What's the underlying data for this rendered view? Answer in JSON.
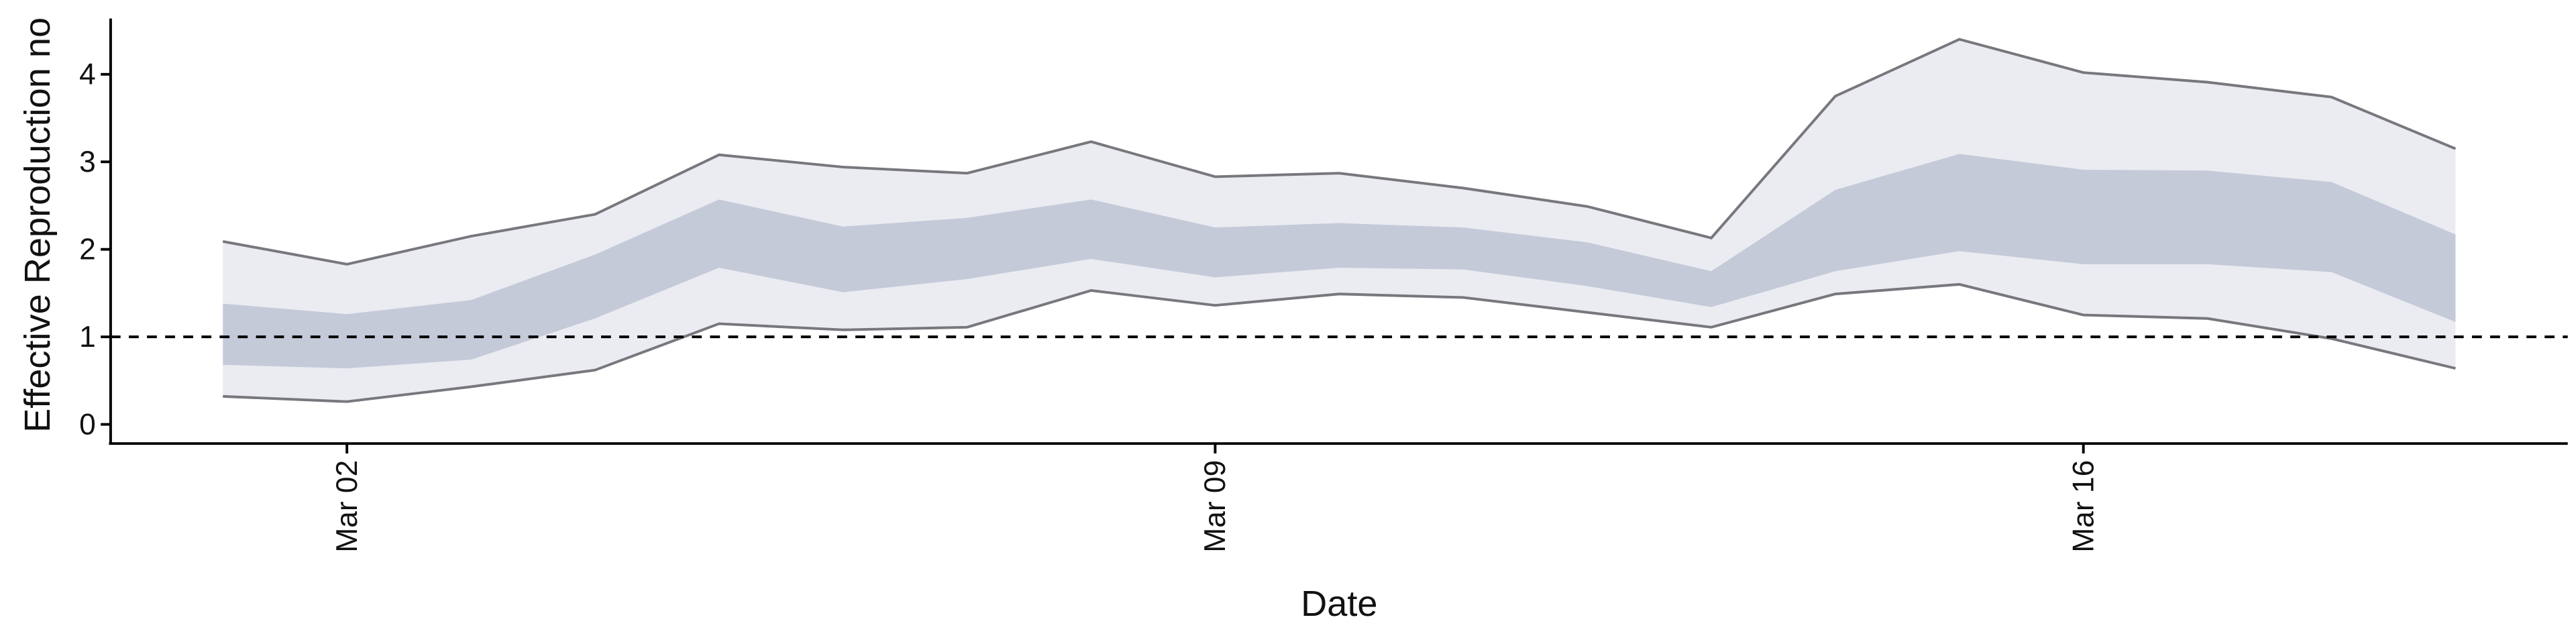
{
  "chart_data": {
    "type": "band",
    "x": [
      "Mar 01",
      "Mar 02",
      "Mar 03",
      "Mar 04",
      "Mar 05",
      "Mar 06",
      "Mar 07",
      "Mar 08",
      "Mar 09",
      "Mar 10",
      "Mar 11",
      "Mar 12",
      "Mar 13",
      "Mar 14",
      "Mar 15",
      "Mar 16",
      "Mar 17",
      "Mar 18",
      "Mar 19"
    ],
    "bands": [
      {
        "color": "#ebecf2",
        "edge_color": "#77777d",
        "upper": [
          2.09,
          1.83,
          2.15,
          2.4,
          3.08,
          2.94,
          2.87,
          3.23,
          2.83,
          2.87,
          2.7,
          2.49,
          2.13,
          3.75,
          4.4,
          4.02,
          3.91,
          3.74,
          3.15
        ],
        "lower": [
          0.32,
          0.26,
          0.43,
          0.62,
          1.15,
          1.08,
          1.11,
          1.53,
          1.36,
          1.49,
          1.45,
          1.28,
          1.11,
          1.49,
          1.6,
          1.25,
          1.21,
          0.98,
          0.64
        ]
      },
      {
        "color": "#c5cad9",
        "upper": [
          1.38,
          1.26,
          1.42,
          1.94,
          2.57,
          2.26,
          2.36,
          2.57,
          2.25,
          2.3,
          2.25,
          2.08,
          1.75,
          2.68,
          3.09,
          2.91,
          2.9,
          2.77,
          2.17
        ],
        "lower": [
          0.68,
          0.64,
          0.74,
          1.21,
          1.79,
          1.51,
          1.66,
          1.89,
          1.68,
          1.79,
          1.77,
          1.58,
          1.34,
          1.75,
          1.98,
          1.83,
          1.83,
          1.74,
          1.17
        ]
      }
    ],
    "hline": 1,
    "ylim": [
      -0.2,
      4.6
    ],
    "yticks": [
      0,
      1,
      2,
      3,
      4
    ],
    "xticks": [
      "Mar 02",
      "Mar 09",
      "Mar 16"
    ],
    "xlabel": "Date",
    "ylabel": "Effective Reproduction no"
  }
}
